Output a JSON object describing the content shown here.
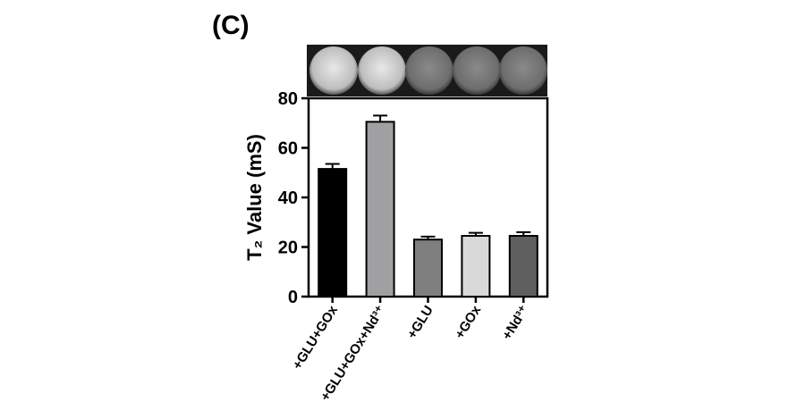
{
  "chart_data": {
    "type": "bar",
    "panel_label": "(C)",
    "y_label": "T₂ Value (mS)",
    "categories": [
      "+GLU+GOx",
      "+GLU+GOx+Nd³⁺",
      "+GLU",
      "+GOx",
      "+Nd³⁺"
    ],
    "values": [
      51.5,
      70.5,
      23,
      24.5,
      24.5
    ],
    "errors": [
      2,
      2.5,
      1.2,
      1.2,
      1.5
    ],
    "colors": [
      "#000000",
      "#a0a0a3",
      "#7f7f7f",
      "#d9d9d9",
      "#5f5f5f"
    ],
    "ylim": [
      0,
      80
    ],
    "yticks": [
      0,
      20,
      40,
      60,
      80
    ],
    "grid": false
  }
}
